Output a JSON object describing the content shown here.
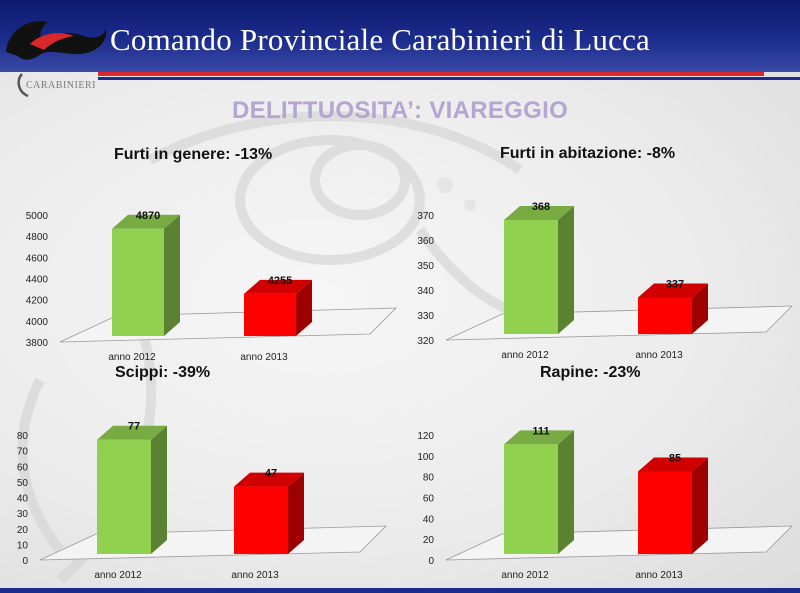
{
  "header": {
    "title": "Comando Provinciale Carabinieri di Lucca",
    "logo_text": "CARABINIERI"
  },
  "page": {
    "subtitle": "DELITTUOSITA’: VIAREGGIO"
  },
  "colors": {
    "header_blue": "#1c2c8c",
    "stripe_red": "#d8282a",
    "bar_2012": "#92d050",
    "bar_2013": "#ff0000",
    "subtitle": "#b4a5d2"
  },
  "chart_data": [
    {
      "type": "bar",
      "title": "Furti in genere: -13%",
      "categories": [
        "anno 2012",
        "anno 2013"
      ],
      "values": [
        4870,
        4255
      ],
      "value_labels": [
        "4870",
        "4255"
      ],
      "ylim": [
        3800,
        5000
      ],
      "yticks": [
        "3800",
        "4000",
        "4200",
        "4400",
        "4600",
        "4800",
        "5000"
      ],
      "style": "3d"
    },
    {
      "type": "bar",
      "title": "Furti in abitazione: -8%",
      "categories": [
        "anno 2012",
        "anno 2013"
      ],
      "values": [
        368,
        337
      ],
      "value_labels": [
        "368",
        "337"
      ],
      "ylim": [
        320,
        370
      ],
      "yticks": [
        "320",
        "330",
        "340",
        "350",
        "360",
        "370"
      ],
      "style": "3d"
    },
    {
      "type": "bar",
      "title": "Scippi: -39%",
      "categories": [
        "anno 2012",
        "anno 2013"
      ],
      "values": [
        77,
        47
      ],
      "value_labels": [
        "77",
        "47"
      ],
      "ylim": [
        0,
        80
      ],
      "yticks": [
        "0",
        "10",
        "20",
        "30",
        "40",
        "50",
        "60",
        "70",
        "80"
      ],
      "style": "3d"
    },
    {
      "type": "bar",
      "title": "Rapine: -23%",
      "categories": [
        "anno 2012",
        "anno 2013"
      ],
      "values": [
        111,
        85
      ],
      "value_labels": [
        "111",
        "85"
      ],
      "ylim": [
        0,
        120
      ],
      "yticks": [
        "0",
        "20",
        "40",
        "60",
        "80",
        "100",
        "120"
      ],
      "style": "3d"
    }
  ]
}
